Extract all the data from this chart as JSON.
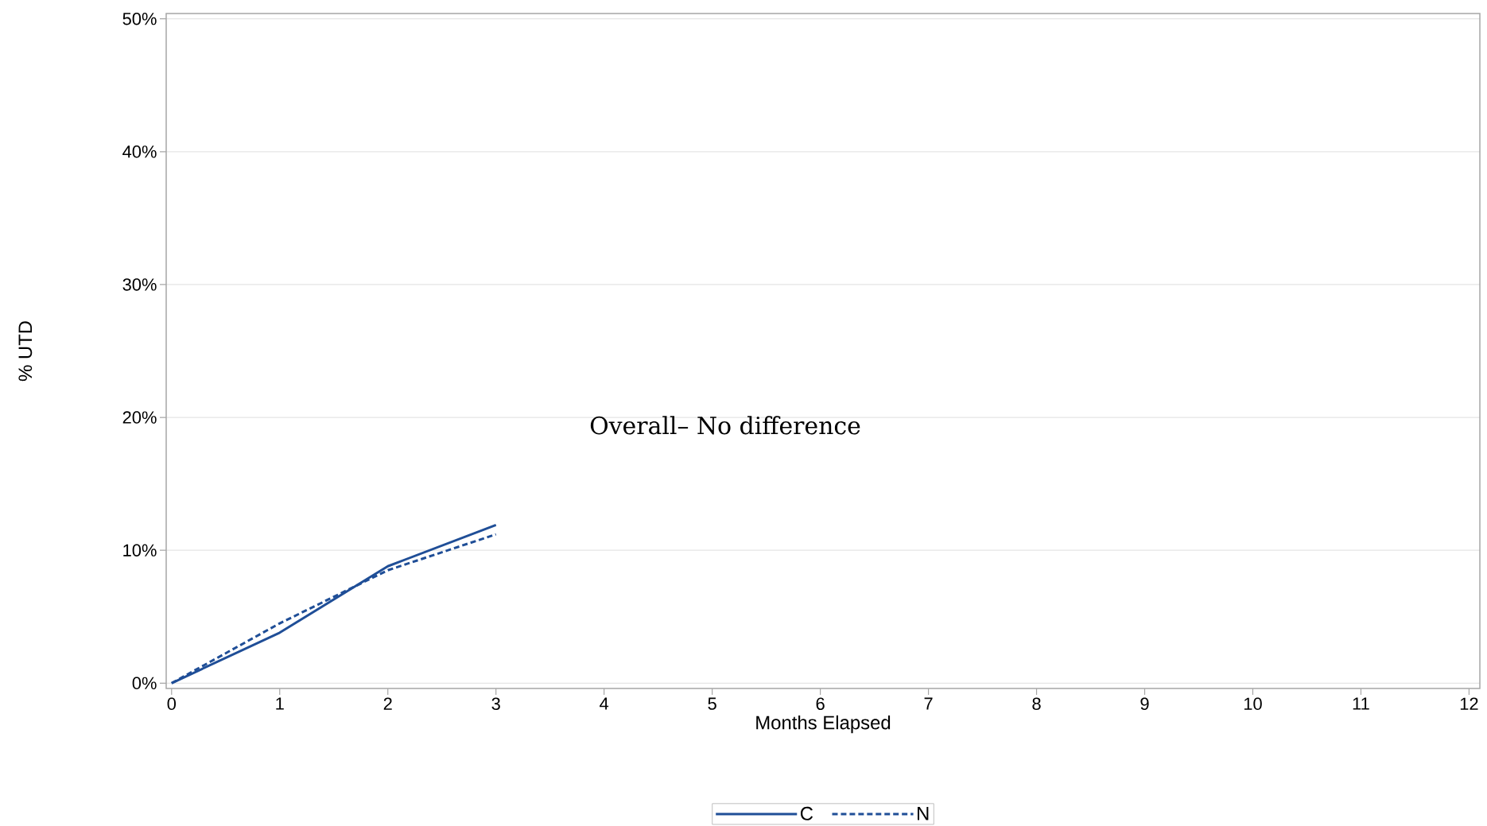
{
  "chart_data": {
    "type": "line",
    "xlabel": "Months Elapsed",
    "ylabel": "% UTD",
    "annotations": [
      "Overall– No difference"
    ],
    "x": [
      0,
      1,
      2,
      3
    ],
    "series": [
      {
        "name": "C",
        "color": "#1f4e97",
        "line_style": "solid",
        "values": [
          0,
          3.8,
          8.8,
          11.9
        ]
      },
      {
        "name": "N",
        "color": "#1f4e97",
        "line_style": "dashed",
        "values": [
          0,
          4.5,
          8.5,
          11.2
        ]
      }
    ],
    "xlim": [
      -0.05,
      12.1
    ],
    "xticks": [
      0,
      1,
      2,
      3,
      4,
      5,
      6,
      7,
      8,
      9,
      10,
      11,
      12
    ],
    "ylim": [
      -0.4,
      50.4
    ],
    "yticks": [
      {
        "value": 0,
        "label": "0%"
      },
      {
        "value": 10,
        "label": "10%"
      },
      {
        "value": 20,
        "label": "20%"
      },
      {
        "value": 30,
        "label": "30%"
      },
      {
        "value": 40,
        "label": "40%"
      },
      {
        "value": 50,
        "label": "50%"
      }
    ],
    "grid": "y",
    "legend": "bottom",
    "marker": "none"
  }
}
